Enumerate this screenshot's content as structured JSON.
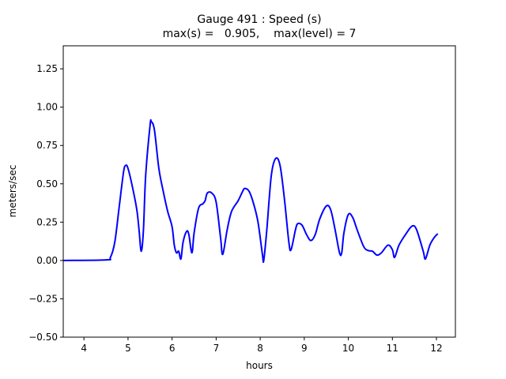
{
  "chart_data": {
    "type": "line",
    "title": "Gauge 491 : Speed (s)",
    "subtitle": "max(s) =   0.905,    max(level) = 7",
    "xlabel": "hours",
    "ylabel": "meters/sec",
    "xlim": [
      3.53,
      12.43
    ],
    "ylim": [
      -0.5,
      1.4
    ],
    "xticks": [
      "4",
      "5",
      "6",
      "7",
      "8",
      "9",
      "10",
      "11",
      "12"
    ],
    "yticks": [
      "−0.50",
      "−0.25",
      "0.00",
      "0.25",
      "0.50",
      "0.75",
      "1.00",
      "1.25"
    ],
    "grid": false,
    "series": [
      {
        "name": "speed",
        "color": "#0000ff",
        "x": [
          3.53,
          4.5,
          4.6,
          4.7,
          4.8,
          4.9,
          4.95,
          5.0,
          5.1,
          5.2,
          5.25,
          5.3,
          5.35,
          5.4,
          5.5,
          5.53,
          5.6,
          5.7,
          5.8,
          5.9,
          6.0,
          6.05,
          6.1,
          6.15,
          6.2,
          6.25,
          6.33,
          6.38,
          6.45,
          6.5,
          6.6,
          6.7,
          6.75,
          6.8,
          6.9,
          7.0,
          7.1,
          7.15,
          7.25,
          7.35,
          7.5,
          7.6,
          7.65,
          7.75,
          7.85,
          7.95,
          8.05,
          8.08,
          8.15,
          8.25,
          8.35,
          8.45,
          8.55,
          8.65,
          8.7,
          8.8,
          8.85,
          8.95,
          9.05,
          9.15,
          9.25,
          9.35,
          9.5,
          9.6,
          9.7,
          9.8,
          9.85,
          9.9,
          10.0,
          10.1,
          10.2,
          10.35,
          10.45,
          10.55,
          10.65,
          10.75,
          10.9,
          11.0,
          11.05,
          11.15,
          11.3,
          11.45,
          11.55,
          11.7,
          11.75,
          11.85,
          11.95,
          12.03
        ],
        "y": [
          0.0,
          0.004,
          0.02,
          0.12,
          0.35,
          0.58,
          0.62,
          0.6,
          0.48,
          0.33,
          0.2,
          0.06,
          0.2,
          0.55,
          0.88,
          0.905,
          0.85,
          0.6,
          0.45,
          0.32,
          0.22,
          0.1,
          0.05,
          0.06,
          0.01,
          0.12,
          0.19,
          0.17,
          0.05,
          0.18,
          0.34,
          0.37,
          0.39,
          0.44,
          0.44,
          0.38,
          0.15,
          0.04,
          0.2,
          0.32,
          0.39,
          0.45,
          0.47,
          0.45,
          0.37,
          0.25,
          0.04,
          0.0,
          0.2,
          0.55,
          0.665,
          0.62,
          0.4,
          0.12,
          0.07,
          0.2,
          0.24,
          0.23,
          0.17,
          0.13,
          0.17,
          0.27,
          0.355,
          0.33,
          0.2,
          0.05,
          0.05,
          0.18,
          0.3,
          0.28,
          0.2,
          0.09,
          0.065,
          0.06,
          0.035,
          0.05,
          0.1,
          0.07,
          0.02,
          0.1,
          0.17,
          0.225,
          0.2,
          0.06,
          0.01,
          0.1,
          0.15,
          0.175
        ]
      }
    ]
  }
}
